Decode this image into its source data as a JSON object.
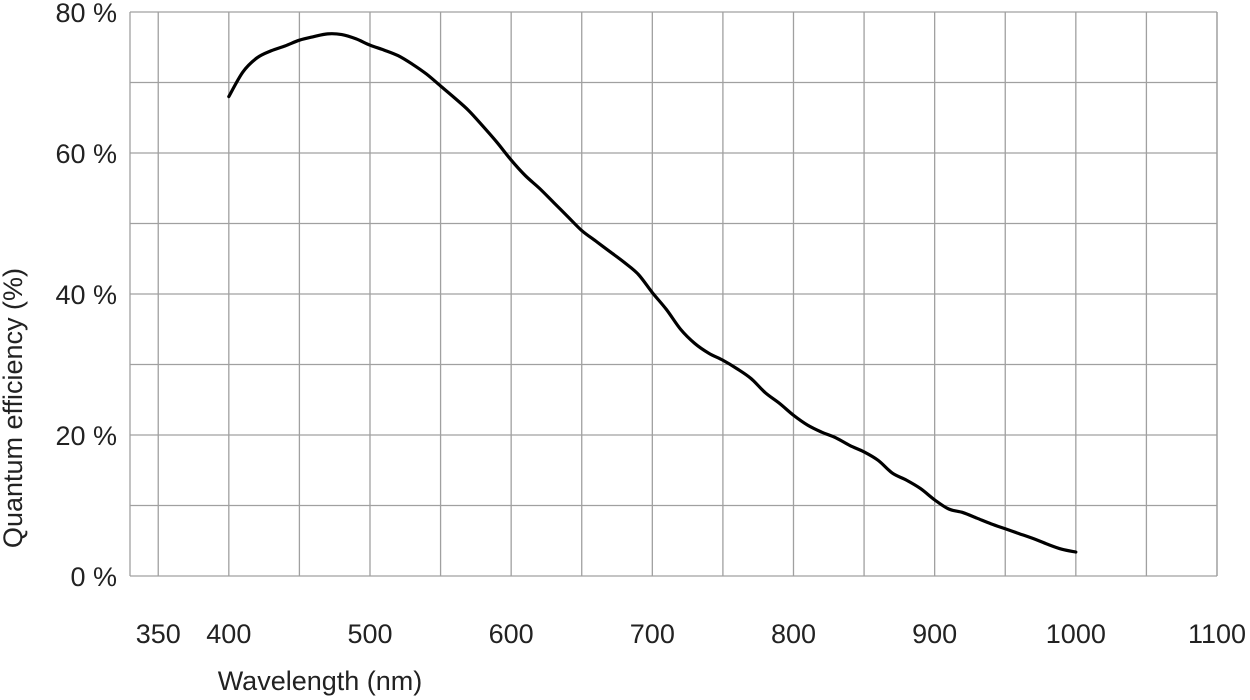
{
  "chart_data": {
    "type": "line",
    "title": "",
    "xlabel": "Wavelength (nm)",
    "ylabel": "Quantum efficiency (%)",
    "xlim": [
      330,
      1100
    ],
    "ylim": [
      0,
      80
    ],
    "x_ticks": [
      350,
      400,
      500,
      600,
      700,
      800,
      900,
      1000,
      1100
    ],
    "x_tick_labels": [
      "350",
      "400",
      "500",
      "600",
      "700",
      "800",
      "900",
      "1000",
      "1100"
    ],
    "y_ticks": [
      0,
      20,
      40,
      60,
      80
    ],
    "y_tick_labels": [
      "0 %",
      "20 %",
      "40 %",
      "60 %",
      "80 %"
    ],
    "grid": true,
    "legend": "none",
    "series": [
      {
        "color": "#000000",
        "x": [
          400,
          410,
          420,
          430,
          440,
          450,
          460,
          470,
          480,
          490,
          500,
          510,
          520,
          530,
          540,
          550,
          560,
          570,
          580,
          590,
          600,
          610,
          620,
          630,
          640,
          650,
          660,
          670,
          680,
          690,
          700,
          710,
          720,
          730,
          740,
          750,
          760,
          770,
          780,
          790,
          800,
          810,
          820,
          830,
          840,
          850,
          860,
          870,
          880,
          890,
          900,
          910,
          920,
          930,
          940,
          950,
          960,
          970,
          980,
          990,
          1000
        ],
        "y": [
          68,
          71.5,
          73.5,
          74.5,
          75.2,
          76,
          76.5,
          76.9,
          76.8,
          76.2,
          75.3,
          74.6,
          73.8,
          72.6,
          71.2,
          69.5,
          67.8,
          66,
          63.8,
          61.5,
          59,
          56.8,
          55,
          53,
          51,
          49,
          47.5,
          46,
          44.5,
          42.8,
          40.2,
          37.8,
          35,
          33,
          31.6,
          30.6,
          29.4,
          28,
          26,
          24.5,
          22.8,
          21.4,
          20.4,
          19.6,
          18.5,
          17.6,
          16.4,
          14.6,
          13.6,
          12.4,
          10.8,
          9.5,
          9,
          8.2,
          7.4,
          6.7,
          6,
          5.3,
          4.5,
          3.8,
          3.4
        ]
      }
    ]
  }
}
